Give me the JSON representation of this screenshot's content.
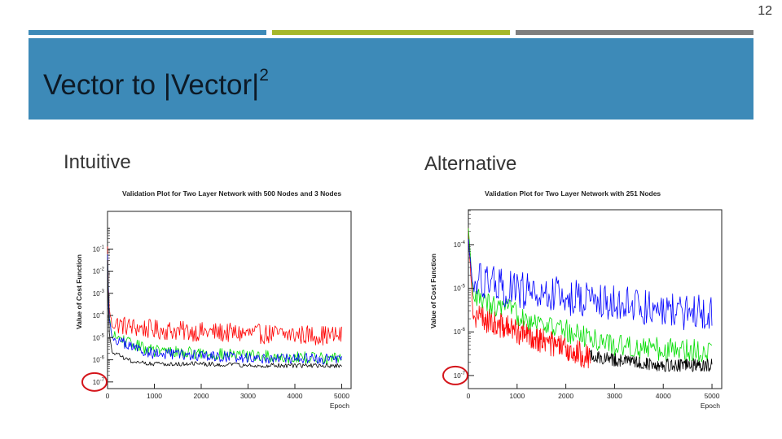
{
  "page_number": "12",
  "slide": {
    "title_text": "Vector to |Vector|",
    "title_superscript": "2",
    "colors": {
      "accent_blue": "#3d8ab8",
      "accent_green": "#a6b82a",
      "accent_gray": "#7f7f7f"
    }
  },
  "left": {
    "label": "Intuitive"
  },
  "right": {
    "label": "Alternative"
  },
  "chart_data": [
    {
      "type": "line",
      "title": "Validation Plot for Two Layer Network with 500 Nodes and 3 Nodes",
      "xlabel": "Epoch",
      "ylabel": "Value of Cost Function",
      "xlim": [
        0,
        5200
      ],
      "ylim_log10": [
        -7.3,
        0.7
      ],
      "y_scale": "log",
      "grid": false,
      "x_ticks": [
        "0",
        "1000",
        "2000",
        "3000",
        "4000",
        "5000"
      ],
      "y_ticks": [
        "10^-7",
        "10^-6",
        "10^-5",
        "10^-4",
        "10^-3",
        "10^-2",
        "10^-1"
      ],
      "highlight": "10^-7",
      "series": [
        {
          "color": "#ff0000",
          "x": [
            0,
            30,
            100,
            500,
            1000,
            2000,
            3000,
            4000,
            5000
          ],
          "y": [
            0.1,
            0.0002,
            3e-05,
            2e-05,
            1.5e-05,
            1.2e-05,
            1e-05,
            9e-06,
            8e-06
          ]
        },
        {
          "color": "#00dd00",
          "x": [
            0,
            30,
            100,
            500,
            1000,
            2000,
            3000,
            4000,
            5000
          ],
          "y": [
            0.05,
            0.0001,
            1e-05,
            4e-06,
            2e-06,
            1.5e-06,
            1.2e-06,
            1e-06,
            9e-07
          ]
        },
        {
          "color": "#0000ff",
          "x": [
            0,
            30,
            100,
            500,
            1000,
            2000,
            3000,
            4000,
            5000
          ],
          "y": [
            0.05,
            0.0001,
            8e-06,
            3e-06,
            1.5e-06,
            1.2e-06,
            1e-06,
            9e-07,
            8e-07
          ]
        },
        {
          "color": "#000000",
          "x": [
            0,
            30,
            100,
            500,
            1000,
            2000,
            3000,
            4000,
            5000
          ],
          "y": [
            0.03,
            2e-05,
            2e-06,
            8e-07,
            6e-07,
            6e-07,
            5e-07,
            5e-07,
            5e-07
          ]
        }
      ]
    },
    {
      "type": "line",
      "title": "Validation Plot for Two Layer Network with 251 Nodes",
      "xlabel": "Epoch",
      "ylabel": "Value of Cost Function",
      "xlim": [
        0,
        5200
      ],
      "ylim_log10": [
        -7.3,
        -3.2
      ],
      "y_scale": "log",
      "grid": false,
      "x_ticks": [
        "0",
        "1000",
        "2000",
        "3000",
        "4000",
        "5000"
      ],
      "y_ticks": [
        "10^-7",
        "10^-6",
        "10^-5",
        "10^-4"
      ],
      "highlight": "10^-7",
      "series": [
        {
          "color": "#ff0000",
          "x": [
            0,
            100,
            500,
            1000,
            1500,
            2000,
            2500
          ],
          "y": [
            0.0002,
            2e-06,
            1.2e-06,
            8e-07,
            5e-07,
            3e-07,
            2e-07
          ]
        },
        {
          "color": "#00dd00",
          "x": [
            0,
            100,
            500,
            1000,
            2000,
            3000,
            4000,
            5000
          ],
          "y": [
            0.0002,
            5e-06,
            3e-06,
            2e-06,
            8e-07,
            4e-07,
            3e-07,
            3e-07
          ]
        },
        {
          "color": "#0000ff",
          "x": [
            0,
            100,
            500,
            1000,
            2000,
            3000,
            4000,
            5000
          ],
          "y": [
            0.0001,
            1e-05,
            8e-06,
            6e-06,
            4e-06,
            3e-06,
            2e-06,
            2e-06
          ]
        },
        {
          "color": "#000000",
          "x": [
            2500,
            3000,
            4000,
            5000
          ],
          "y": [
            2.5e-07,
            2e-07,
            1.5e-07,
            1.5e-07
          ]
        }
      ]
    }
  ]
}
